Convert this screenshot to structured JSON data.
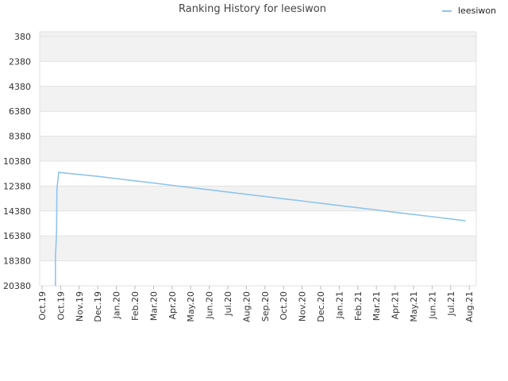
{
  "chart_data": {
    "type": "line",
    "title": "Ranking History for leesiwon",
    "xlabel": "",
    "ylabel": "",
    "y_reversed": true,
    "ylim": [
      380,
      20380
    ],
    "y_ticks": [
      380,
      2380,
      4380,
      6380,
      8380,
      10380,
      12380,
      14380,
      16380,
      18380,
      20380
    ],
    "x_ticks": [
      "Oct.19",
      "Oct.19",
      "Nov.19",
      "Dec.19",
      "Jan.20",
      "Feb.20",
      "Mar.20",
      "Apr.20",
      "May.20",
      "Jun.20",
      "Jul.20",
      "Aug.20",
      "Sep.20",
      "Oct.20",
      "Nov.20",
      "Dec.20",
      "Jan.21",
      "Feb.21",
      "Mar.21",
      "Apr.21",
      "May.21",
      "Jun.21",
      "Jul.21",
      "Aug.21"
    ],
    "grid": true,
    "legend_position": "top-right",
    "series": [
      {
        "name": "leesiwon",
        "color": "#90c4ec",
        "points": [
          [
            0.72,
            20380
          ],
          [
            0.72,
            18000
          ],
          [
            0.75,
            17200
          ],
          [
            0.78,
            16000
          ],
          [
            0.8,
            12600
          ],
          [
            0.83,
            12200
          ],
          [
            0.9,
            11250
          ],
          [
            1.0,
            11300
          ],
          [
            2.0,
            11450
          ],
          [
            3.0,
            11600
          ],
          [
            4.0,
            11780
          ],
          [
            5.0,
            11960
          ],
          [
            6.0,
            12140
          ],
          [
            7.0,
            12320
          ],
          [
            8.0,
            12500
          ],
          [
            9.0,
            12680
          ],
          [
            10.0,
            12860
          ],
          [
            11.0,
            13040
          ],
          [
            12.0,
            13220
          ],
          [
            13.0,
            13400
          ],
          [
            14.0,
            13580
          ],
          [
            15.0,
            13760
          ],
          [
            16.0,
            13940
          ],
          [
            17.0,
            14120
          ],
          [
            18.0,
            14300
          ],
          [
            19.0,
            14480
          ],
          [
            20.0,
            14660
          ],
          [
            21.0,
            14840
          ],
          [
            22.0,
            15020
          ],
          [
            22.8,
            15170
          ]
        ]
      }
    ]
  }
}
